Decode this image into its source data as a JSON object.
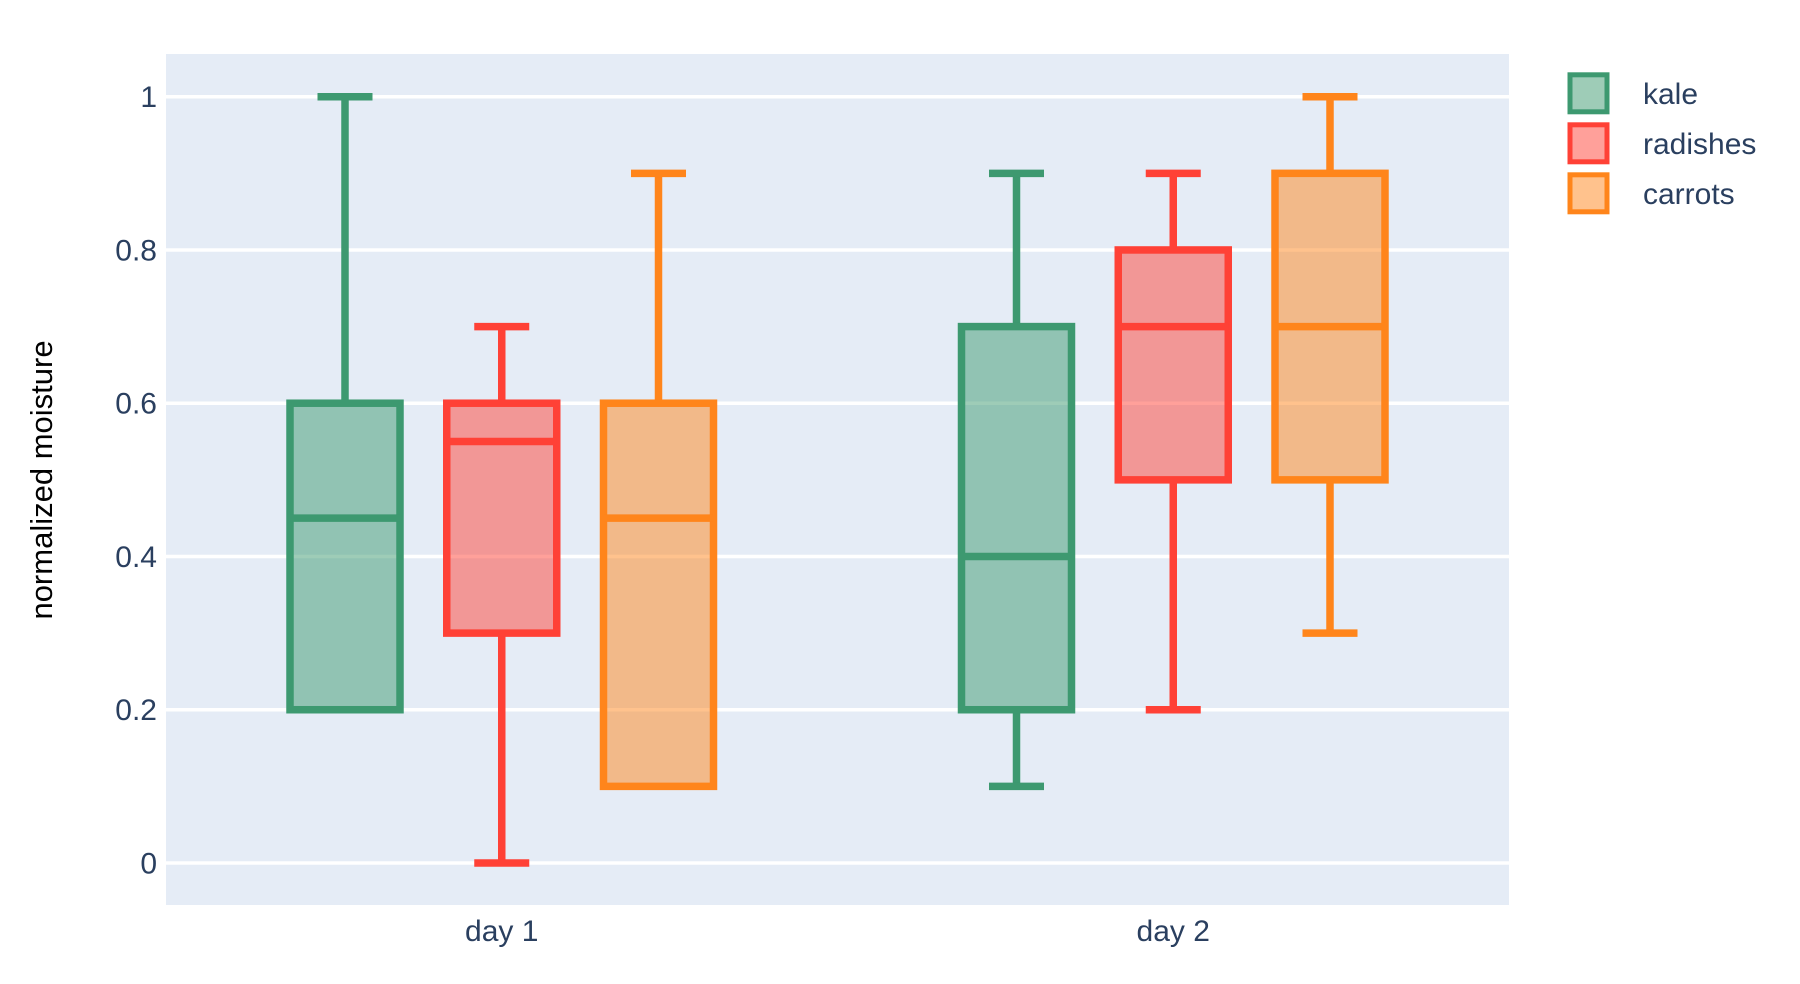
{
  "chart": {
    "paper_bgcolor": "#ffffff",
    "plot_bgcolor": "#e5ecf6",
    "grid_color": "#ffffff",
    "font_color": "#2a3f5f"
  },
  "chart_data": {
    "type": "box",
    "title": "",
    "xlabel": "",
    "ylabel": "normalized moisture",
    "categories": [
      "day 1",
      "day 2"
    ],
    "ytick_values": [
      0,
      0.2,
      0.4,
      0.6,
      0.8,
      1
    ],
    "ytick_labels": [
      "0",
      "0.2",
      "0.4",
      "0.6",
      "0.8",
      "1"
    ],
    "ylim": [
      -0.055,
      1.056
    ],
    "grid": true,
    "legend_position": "top-right",
    "series": [
      {
        "name": "kale",
        "line_color": "#3D9970",
        "fill_color": "rgba(61,153,112,0.5)",
        "boxes": [
          {
            "category": "day 1",
            "low": 0.2,
            "q1": 0.2,
            "median": 0.45,
            "q3": 0.6,
            "high": 1.0
          },
          {
            "category": "day 2",
            "low": 0.1,
            "q1": 0.2,
            "median": 0.4,
            "q3": 0.7,
            "high": 0.9
          }
        ]
      },
      {
        "name": "radishes",
        "line_color": "#FF4136",
        "fill_color": "rgba(255,65,54,0.5)",
        "boxes": [
          {
            "category": "day 1",
            "low": 0.0,
            "q1": 0.3,
            "median": 0.55,
            "q3": 0.6,
            "high": 0.7
          },
          {
            "category": "day 2",
            "low": 0.2,
            "q1": 0.5,
            "median": 0.7,
            "q3": 0.8,
            "high": 0.9
          }
        ]
      },
      {
        "name": "carrots",
        "line_color": "#FF851B",
        "fill_color": "rgba(255,133,27,0.5)",
        "boxes": [
          {
            "category": "day 1",
            "low": 0.1,
            "q1": 0.1,
            "median": 0.45,
            "q3": 0.6,
            "high": 0.9
          },
          {
            "category": "day 2",
            "low": 0.3,
            "q1": 0.5,
            "median": 0.7,
            "q3": 0.9,
            "high": 1.0
          }
        ]
      }
    ]
  }
}
